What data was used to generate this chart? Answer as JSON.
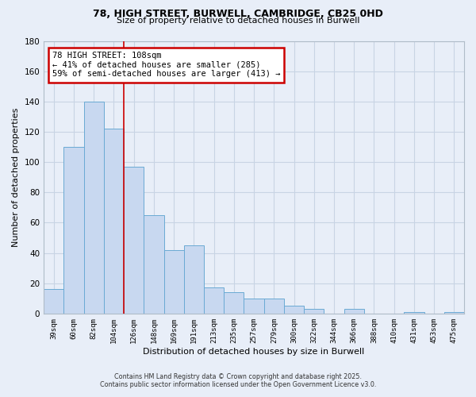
{
  "title": "78, HIGH STREET, BURWELL, CAMBRIDGE, CB25 0HD",
  "subtitle": "Size of property relative to detached houses in Burwell",
  "xlabel": "Distribution of detached houses by size in Burwell",
  "ylabel": "Number of detached properties",
  "categories": [
    "39sqm",
    "60sqm",
    "82sqm",
    "104sqm",
    "126sqm",
    "148sqm",
    "169sqm",
    "191sqm",
    "213sqm",
    "235sqm",
    "257sqm",
    "279sqm",
    "300sqm",
    "322sqm",
    "344sqm",
    "366sqm",
    "388sqm",
    "410sqm",
    "431sqm",
    "453sqm",
    "475sqm"
  ],
  "values": [
    16,
    110,
    140,
    122,
    97,
    65,
    42,
    45,
    17,
    14,
    10,
    10,
    5,
    3,
    0,
    3,
    0,
    0,
    1,
    0,
    1
  ],
  "bar_color": "#c8d8f0",
  "bar_edge_color": "#6aaad4",
  "ylim": [
    0,
    180
  ],
  "yticks": [
    0,
    20,
    40,
    60,
    80,
    100,
    120,
    140,
    160,
    180
  ],
  "property_label": "78 HIGH STREET: 108sqm",
  "arrow_left_text": "← 41% of detached houses are smaller (285)",
  "arrow_right_text": "59% of semi-detached houses are larger (413) →",
  "vline_position": 3.5,
  "annotation_box_color": "#ffffff",
  "annotation_border_color": "#cc0000",
  "vline_color": "#cc0000",
  "grid_color": "#c8d4e4",
  "background_color": "#e8eef8",
  "footnote1": "Contains HM Land Registry data © Crown copyright and database right 2025.",
  "footnote2": "Contains public sector information licensed under the Open Government Licence v3.0."
}
